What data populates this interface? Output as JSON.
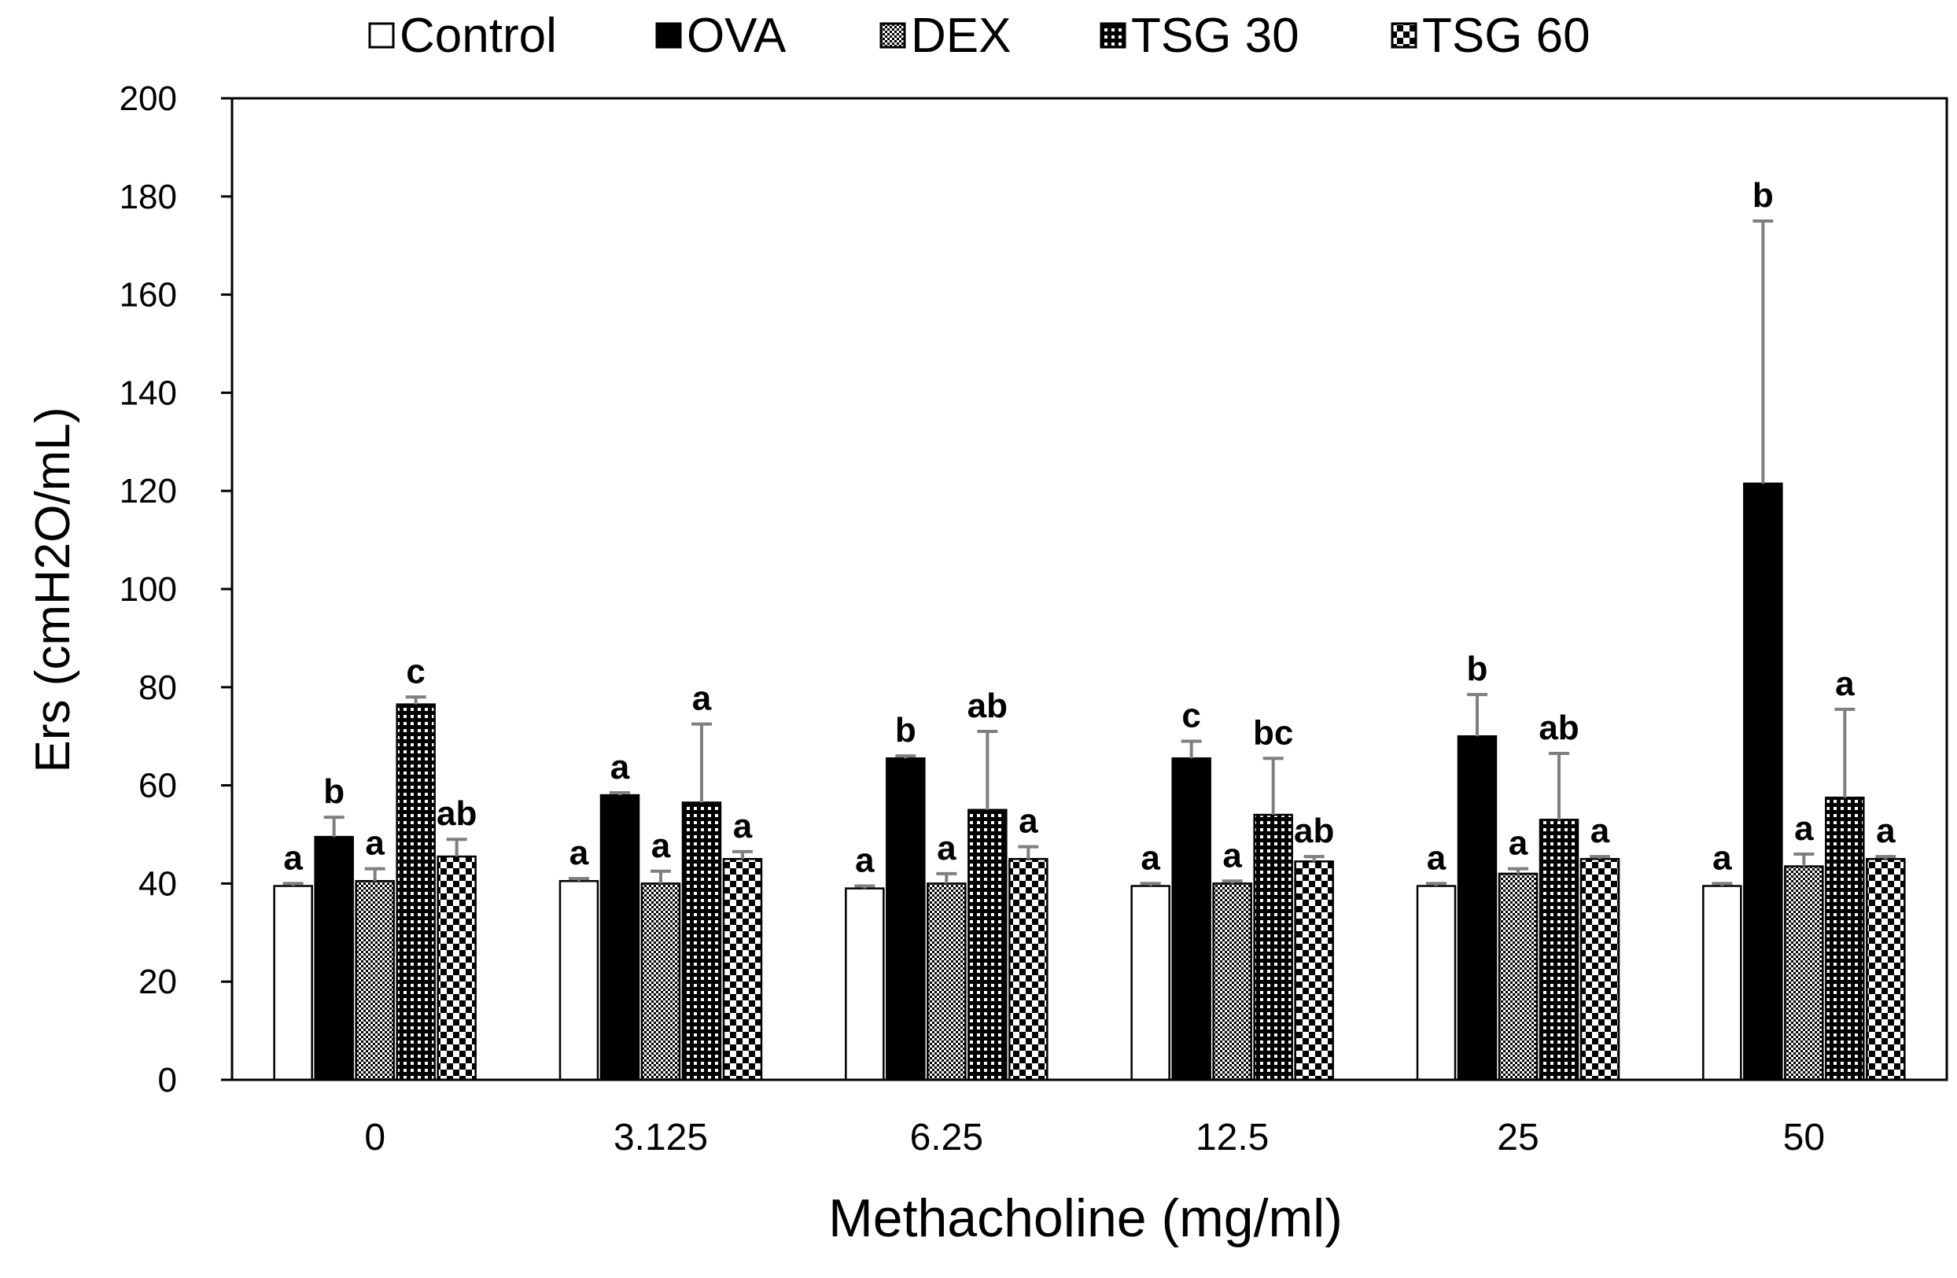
{
  "chart_data": {
    "type": "bar",
    "title": "",
    "xlabel": "Methacholine (mg/ml)",
    "ylabel": "Ers (cmH2O/mL)",
    "ylim": [
      0,
      200
    ],
    "yticks": [
      0,
      20,
      40,
      60,
      80,
      100,
      120,
      140,
      160,
      180,
      200
    ],
    "categories": [
      "0",
      "3.125",
      "6.25",
      "12.5",
      "25",
      "50"
    ],
    "legend_position": "top",
    "series": [
      {
        "name": "Control",
        "pattern": "white",
        "values": [
          39.5,
          40.5,
          39,
          39.5,
          39.5,
          39.5
        ],
        "errors": [
          0.5,
          0.5,
          0.5,
          0.5,
          0.5,
          0.5
        ],
        "labels": [
          "a",
          "a",
          "a",
          "a",
          "a",
          "a"
        ]
      },
      {
        "name": "OVA",
        "pattern": "black",
        "values": [
          49.5,
          58,
          65.5,
          65.5,
          70,
          121.5
        ],
        "errors": [
          4,
          0.5,
          0.5,
          3.5,
          8.5,
          53.5
        ],
        "labels": [
          "b",
          "a",
          "b",
          "c",
          "b",
          "b"
        ]
      },
      {
        "name": "DEX",
        "pattern": "fine-dots",
        "values": [
          40.5,
          40,
          40,
          40,
          42,
          43.5
        ],
        "errors": [
          2.5,
          2.5,
          2,
          0.5,
          1,
          2.5
        ],
        "labels": [
          "a",
          "a",
          "a",
          "a",
          "a",
          "a"
        ]
      },
      {
        "name": "TSG 30",
        "pattern": "dense-grid",
        "values": [
          76.5,
          56.5,
          55,
          54,
          53,
          57.5
        ],
        "errors": [
          1.5,
          16,
          16,
          11.5,
          13.5,
          18
        ],
        "labels": [
          "c",
          "a",
          "ab",
          "bc",
          "ab",
          "a"
        ]
      },
      {
        "name": "TSG 60",
        "pattern": "checker",
        "values": [
          45.5,
          45,
          45,
          44.5,
          45,
          45
        ],
        "errors": [
          3.5,
          1.5,
          2.5,
          1,
          0.5,
          0.5
        ],
        "labels": [
          "ab",
          "a",
          "a",
          "ab",
          "a",
          "a"
        ]
      }
    ]
  }
}
